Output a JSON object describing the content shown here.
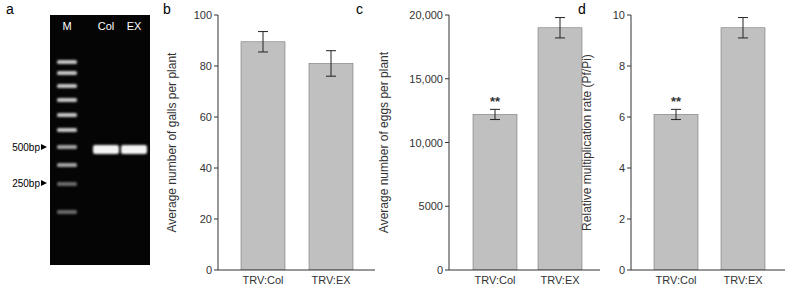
{
  "chart_data": [
    {
      "type": "gel",
      "panel": "a",
      "lanes": [
        "M",
        "Col",
        "EX"
      ],
      "size_labels": [
        "500bp",
        "250bp"
      ]
    },
    {
      "type": "bar",
      "panel": "b",
      "y_label": "Average number of galls per plant",
      "categories": [
        "TRV:Col",
        "TRV:EX"
      ],
      "values": [
        89.5,
        81
      ],
      "errors": [
        4,
        5
      ],
      "color": "#c0c0c0",
      "ylim": [
        0,
        100
      ],
      "yticks": [
        0,
        20,
        40,
        60,
        80,
        100
      ],
      "annotations": []
    },
    {
      "type": "bar",
      "panel": "c",
      "y_label": "Average number of eggs per plant",
      "categories": [
        "TRV:Col",
        "TRV:EX"
      ],
      "values": [
        12200,
        19000
      ],
      "errors": [
        400,
        800
      ],
      "color": "#c0c0c0",
      "ylim": [
        0,
        20000
      ],
      "yticks": [
        0,
        5000,
        {
          "value": 10000,
          "label": "10,000"
        },
        {
          "value": 15000,
          "label": "15,000"
        },
        {
          "value": 20000,
          "label": "20,000"
        }
      ],
      "annotations": [
        {
          "category": "TRV:Col",
          "text": "**"
        }
      ]
    },
    {
      "type": "bar",
      "panel": "d",
      "y_label": "Relative multiplication rate (Pf/Pi)",
      "categories": [
        "TRV:Col",
        "TRV:EX"
      ],
      "values": [
        6.1,
        9.5
      ],
      "errors": [
        0.2,
        0.4
      ],
      "color": "#c0c0c0",
      "ylim": [
        0,
        10
      ],
      "yticks": [
        0,
        2,
        4,
        6,
        8,
        10
      ],
      "annotations": [
        {
          "category": "TRV:Col",
          "text": "**"
        }
      ]
    }
  ]
}
